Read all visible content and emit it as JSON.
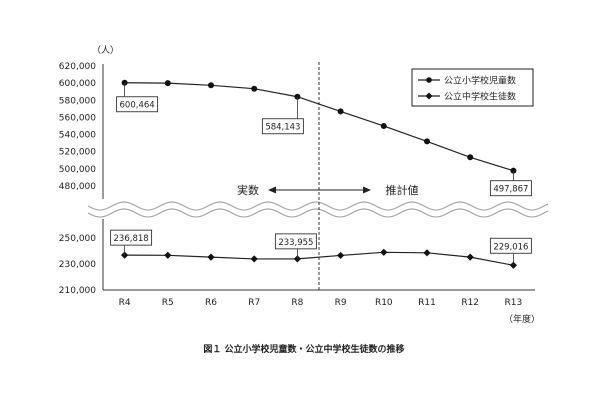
{
  "chart_data": {
    "type": "line",
    "title": "",
    "caption": "図１ 公立小学校児童数・公立中学校生徒数の推移",
    "y_unit": "（人）",
    "x_unit": "（年度）",
    "categories": [
      "R4",
      "R5",
      "R6",
      "R7",
      "R8",
      "R9",
      "R10",
      "R11",
      "R12",
      "R13"
    ],
    "upper_axis": {
      "ylim": [
        480000,
        620000
      ],
      "ticks": [
        "620,000",
        "600,000",
        "580,000",
        "560,000",
        "540,000",
        "520,000",
        "500,000",
        "480,000"
      ]
    },
    "lower_axis": {
      "ylim": [
        210000,
        250000
      ],
      "ticks": [
        "250,000",
        "230,000",
        "210,000"
      ]
    },
    "series": [
      {
        "name": "公立小学校児童数",
        "marker": "circle",
        "values": [
          600464,
          600000,
          597500,
          593500,
          584143,
          567000,
          550000,
          532000,
          513500,
          497867
        ]
      },
      {
        "name": "公立中学校生徒数",
        "marker": "diamond",
        "values": [
          236818,
          236700,
          235300,
          233900,
          233955,
          236600,
          239000,
          238600,
          235300,
          229016
        ]
      }
    ],
    "data_labels": [
      {
        "series": 0,
        "index": 0,
        "text": "600,464"
      },
      {
        "series": 0,
        "index": 4,
        "text": "584,143"
      },
      {
        "series": 0,
        "index": 9,
        "text": "497,867"
      },
      {
        "series": 1,
        "index": 0,
        "text": "236,818"
      },
      {
        "series": 1,
        "index": 4,
        "text": "233,955"
      },
      {
        "series": 1,
        "index": 9,
        "text": "229,016"
      }
    ],
    "annotations": {
      "actual": "実数",
      "estimated": "推計値"
    },
    "legend": "top-right",
    "grid": false
  }
}
